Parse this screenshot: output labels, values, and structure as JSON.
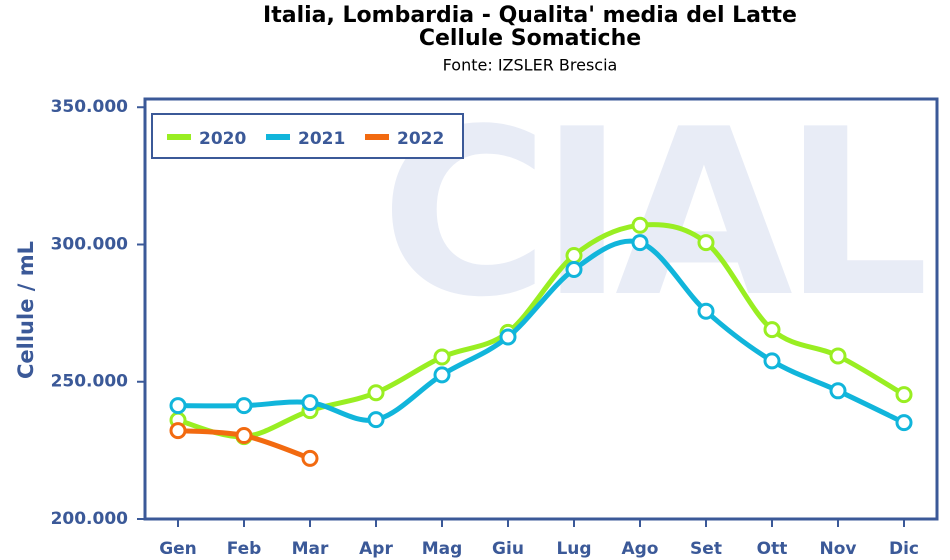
{
  "chart_data": {
    "type": "line",
    "title": "Italia, Lombardia - Qualita' media del Latte",
    "subtitle": "Cellule Somatiche",
    "source": "Fonte: IZSLER Brescia",
    "watermark": "CIAL",
    "y_label": "Cellule / mL",
    "categories": [
      "Gen",
      "Feb",
      "Mar",
      "Apr",
      "Mag",
      "Giu",
      "Lug",
      "Ago",
      "Set",
      "Ott",
      "Nov",
      "Dic"
    ],
    "series": [
      {
        "name": "2020",
        "color": "#99ee22",
        "values": [
          236000,
          230000,
          239500,
          246000,
          259000,
          268000,
          296000,
          307000,
          300700,
          269000,
          259400,
          245300
        ]
      },
      {
        "name": "2021",
        "color": "#11b5db",
        "values": [
          241300,
          241300,
          242400,
          236200,
          252500,
          266300,
          290900,
          300700,
          275700,
          257600,
          246700,
          235100
        ]
      },
      {
        "name": "2022",
        "color": "#f26a10",
        "values": [
          232200,
          230400,
          222100,
          null,
          null,
          null,
          null,
          null,
          null,
          null,
          null,
          null
        ]
      }
    ],
    "ylim": [
      200000,
      353000
    ],
    "yticks": [
      {
        "value": 200000,
        "label": "200.000"
      },
      {
        "value": 250000,
        "label": "250.000"
      },
      {
        "value": 300000,
        "label": "300.000"
      },
      {
        "value": 350000,
        "label": "350.000"
      }
    ],
    "legend": "top-left",
    "smooth": true
  }
}
